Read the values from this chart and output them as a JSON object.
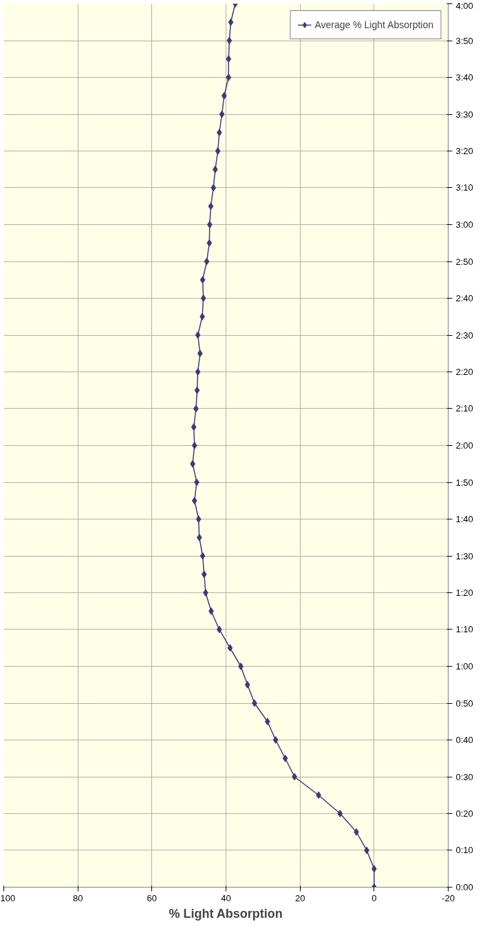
{
  "chart_data": {
    "type": "line",
    "xlabel": "% Light Absorption",
    "series": [
      {
        "name": "Average % Light Absorption",
        "color": "#3b3b7a",
        "x": [
          0,
          0,
          2.0,
          4.8,
          9.2,
          15.0,
          21.5,
          24.0,
          26.6,
          28.8,
          32.3,
          34.2,
          36.0,
          38.9,
          41.8,
          44.0,
          45.5,
          45.9,
          46.3,
          47.2,
          47.4,
          48.5,
          47.9,
          49.0,
          48.5,
          48.7,
          48.1,
          47.8,
          47.6,
          47.0,
          47.6,
          46.4,
          46.1,
          46.3,
          45.2,
          44.5,
          44.4,
          44.1,
          43.4,
          42.9,
          42.2,
          41.8,
          41.1,
          40.5,
          39.3,
          39.3,
          39.1,
          38.7,
          37.5
        ],
        "values": [
          0,
          0.0833,
          0.1667,
          0.25,
          0.3333,
          0.4167,
          0.5,
          0.5833,
          0.6667,
          0.75,
          0.8333,
          0.9167,
          1,
          1.0833,
          1.1667,
          1.25,
          1.3333,
          1.4167,
          1.5,
          1.5833,
          1.6667,
          1.75,
          1.8333,
          1.9167,
          2,
          2.0833,
          2.1667,
          2.25,
          2.3333,
          2.4167,
          2.5,
          2.5833,
          2.6667,
          2.75,
          2.8333,
          2.9167,
          3,
          3.0833,
          3.1667,
          3.25,
          3.3333,
          3.4167,
          3.5,
          3.5833,
          3.6667,
          3.75,
          3.8333,
          3.9167,
          4
        ]
      }
    ],
    "xlim": [
      100,
      -20
    ],
    "xticks": [
      100,
      80,
      60,
      40,
      20,
      0,
      -20
    ],
    "ylim": [
      0,
      4
    ],
    "yticks": [
      {
        "value": 0,
        "label": "0:00"
      },
      {
        "value": 0.1667,
        "label": "0:10"
      },
      {
        "value": 0.3333,
        "label": "0:20"
      },
      {
        "value": 0.5,
        "label": "0:30"
      },
      {
        "value": 0.6667,
        "label": "0:40"
      },
      {
        "value": 0.8333,
        "label": "0:50"
      },
      {
        "value": 1,
        "label": "1:00"
      },
      {
        "value": 1.1667,
        "label": "1:10"
      },
      {
        "value": 1.3333,
        "label": "1:20"
      },
      {
        "value": 1.5,
        "label": "1:30"
      },
      {
        "value": 1.6667,
        "label": "1:40"
      },
      {
        "value": 1.8333,
        "label": "1:50"
      },
      {
        "value": 2,
        "label": "2:00"
      },
      {
        "value": 2.1667,
        "label": "2:10"
      },
      {
        "value": 2.3333,
        "label": "2:20"
      },
      {
        "value": 2.5,
        "label": "2:30"
      },
      {
        "value": 2.6667,
        "label": "2:40"
      },
      {
        "value": 2.8333,
        "label": "2:50"
      },
      {
        "value": 3,
        "label": "3:00"
      },
      {
        "value": 3.1667,
        "label": "3:10"
      },
      {
        "value": 3.3333,
        "label": "3:20"
      },
      {
        "value": 3.5,
        "label": "3:30"
      },
      {
        "value": 3.6667,
        "label": "3:40"
      },
      {
        "value": 3.8333,
        "label": "3:50"
      },
      {
        "value": 4,
        "label": "4:00"
      }
    ],
    "grid": true,
    "legend": "top right",
    "marker": "diamond",
    "line_style": "solid"
  }
}
